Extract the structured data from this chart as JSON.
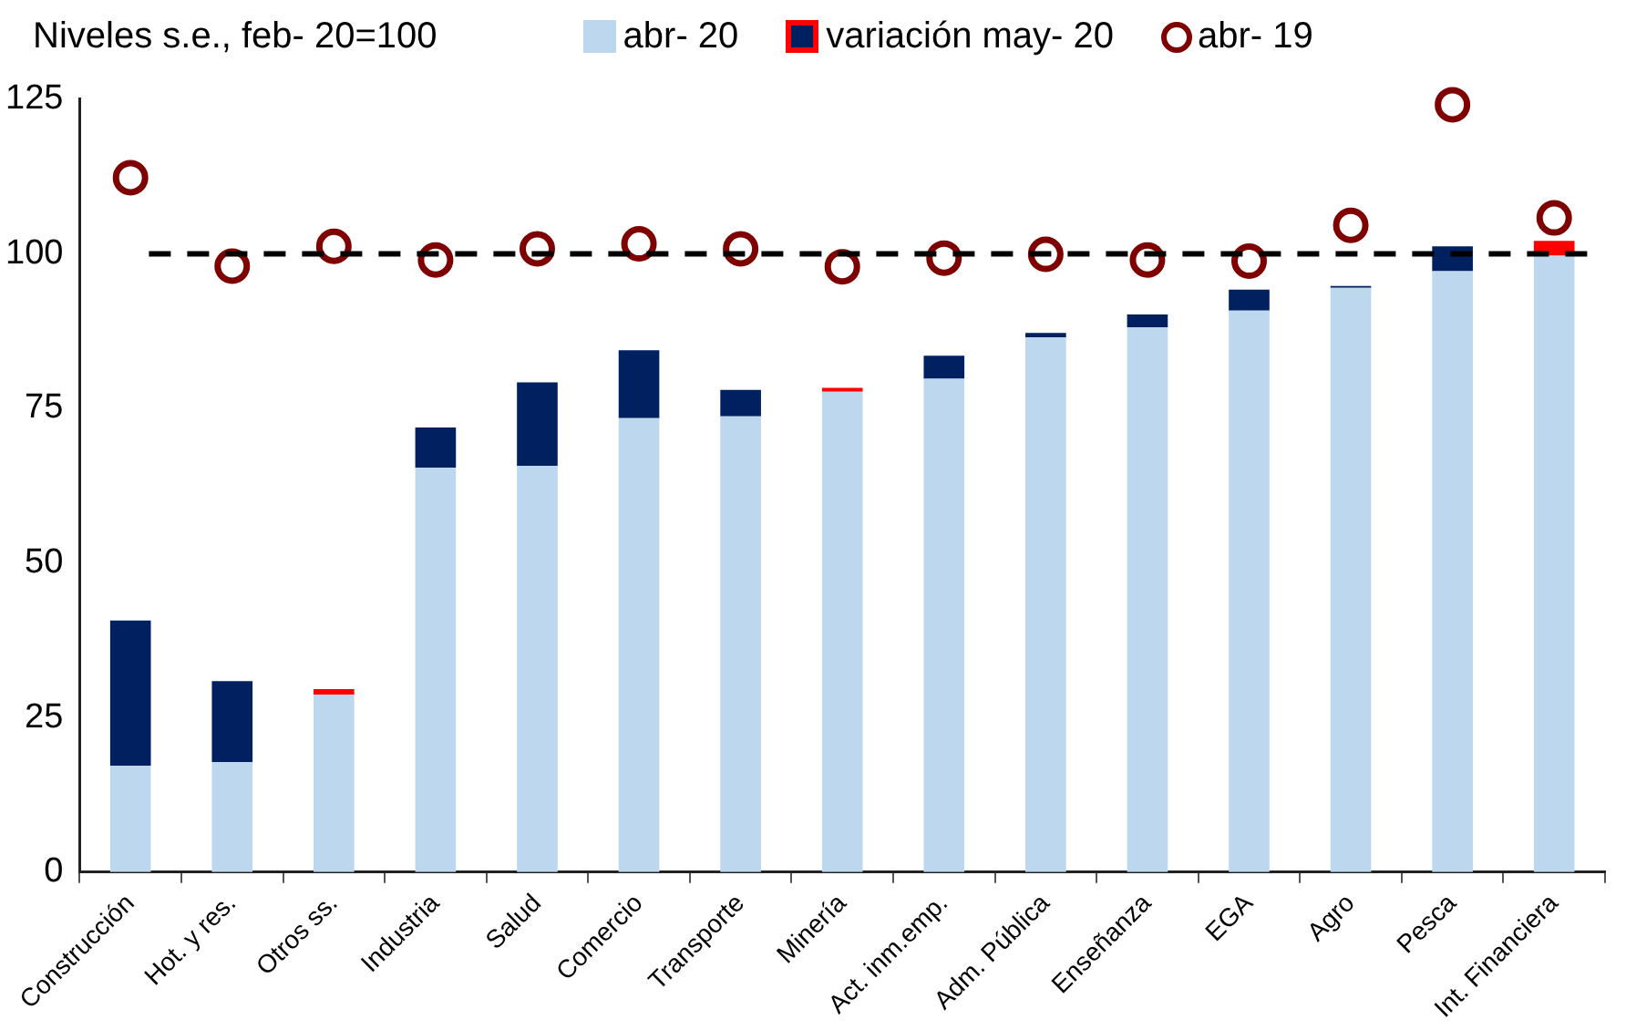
{
  "chart_data": {
    "type": "bar",
    "title": "Niveles s.e., feb- 20=100",
    "stacked": true,
    "legend": "top",
    "marker": "circle",
    "categories": [
      "Construcción",
      "Hot. y res.",
      "Otros ss.",
      "Industria",
      "Salud",
      "Comercio",
      "Transporte",
      "Minería",
      "Act. inm.emp.",
      "Adm. Pública",
      "Enseñanza",
      "EGA",
      "Agro",
      "Pesca",
      "Int. Financiera"
    ],
    "series": [
      {
        "name": "abr- 20",
        "color": "#bdd7ee",
        "values": [
          17.2,
          17.8,
          28.7,
          65.4,
          65.7,
          73.4,
          73.7,
          77.7,
          79.8,
          86.5,
          88.1,
          90.8,
          94.5,
          97.2,
          99.7
        ]
      },
      {
        "name": "variación may- 20",
        "color": "#002060",
        "colors": [
          "#002060",
          "#002060",
          "#ff0000",
          "#002060",
          "#002060",
          "#002060",
          "#002060",
          "#ff0000",
          "#002060",
          "#002060",
          "#002060",
          "#002060",
          "#002060",
          "#002060",
          "#ff0000"
        ],
        "values": [
          23.5,
          13.1,
          0.9,
          6.5,
          13.5,
          11,
          4.3,
          0.6,
          3.7,
          0.7,
          2.1,
          3.4,
          0.3,
          4,
          2.4
        ]
      },
      {
        "name": "abr- 19",
        "type": "scatter",
        "color": "#7f0000",
        "x": [
          "Construcción",
          "Hot. y res.",
          "Otros ss.",
          "Industria",
          "Salud",
          "Comercio",
          "Transporte",
          "Minería",
          "Act. inm.emp.",
          "Adm. Pública",
          "Enseñanza",
          "EGA",
          "Agro",
          "Pesca",
          "Int. Financiera"
        ],
        "values": [
          112.3,
          98,
          101.2,
          99,
          100.8,
          101.6,
          100.8,
          97.9,
          99.3,
          99.9,
          99,
          98.8,
          104.6,
          124.1,
          105.8
        ]
      }
    ],
    "ylim": [
      0,
      125
    ],
    "yticks": [
      0,
      25,
      50,
      75,
      100,
      125
    ],
    "ref_lines": [
      {
        "axis": "y",
        "value": 100,
        "color": "#000000",
        "line_style": "dashed"
      }
    ]
  }
}
